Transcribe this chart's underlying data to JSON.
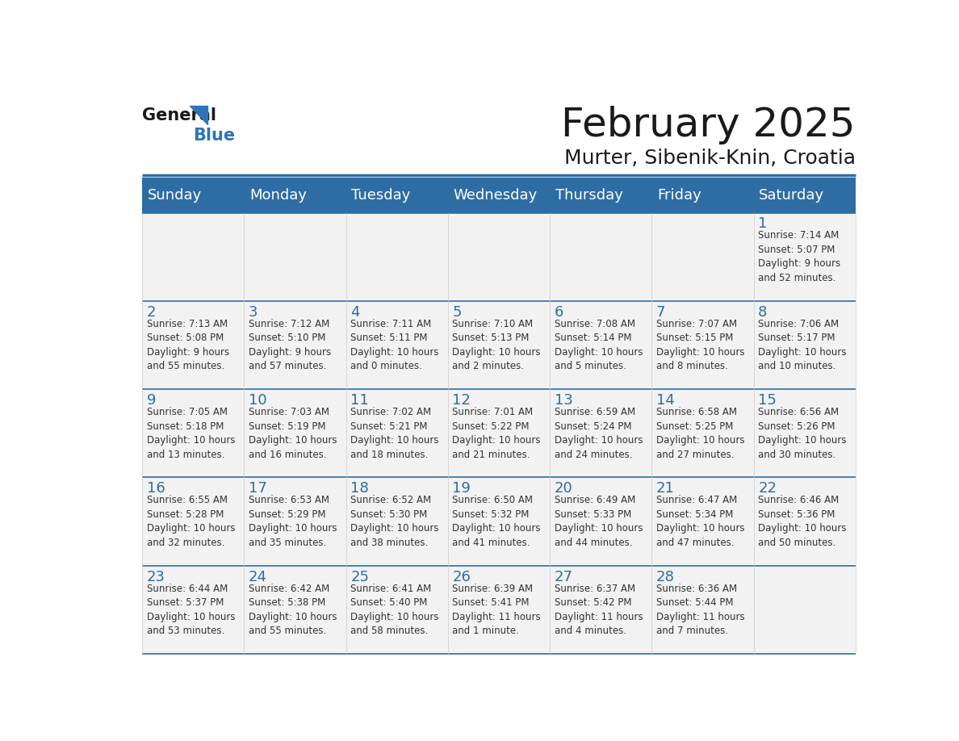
{
  "title": "February 2025",
  "subtitle": "Murter, Sibenik-Knin, Croatia",
  "header_bg": "#2E6DA4",
  "header_text": "#FFFFFF",
  "cell_bg": "#F2F2F2",
  "border_color": "#CCCCCC",
  "title_color": "#1a1a1a",
  "subtitle_color": "#1a1a1a",
  "day_number_color": "#2E6DA4",
  "info_color": "#333333",
  "days_of_week": [
    "Sunday",
    "Monday",
    "Tuesday",
    "Wednesday",
    "Thursday",
    "Friday",
    "Saturday"
  ],
  "weeks": [
    [
      {
        "day": null,
        "info": ""
      },
      {
        "day": null,
        "info": ""
      },
      {
        "day": null,
        "info": ""
      },
      {
        "day": null,
        "info": ""
      },
      {
        "day": null,
        "info": ""
      },
      {
        "day": null,
        "info": ""
      },
      {
        "day": 1,
        "info": "Sunrise: 7:14 AM\nSunset: 5:07 PM\nDaylight: 9 hours\nand 52 minutes."
      }
    ],
    [
      {
        "day": 2,
        "info": "Sunrise: 7:13 AM\nSunset: 5:08 PM\nDaylight: 9 hours\nand 55 minutes."
      },
      {
        "day": 3,
        "info": "Sunrise: 7:12 AM\nSunset: 5:10 PM\nDaylight: 9 hours\nand 57 minutes."
      },
      {
        "day": 4,
        "info": "Sunrise: 7:11 AM\nSunset: 5:11 PM\nDaylight: 10 hours\nand 0 minutes."
      },
      {
        "day": 5,
        "info": "Sunrise: 7:10 AM\nSunset: 5:13 PM\nDaylight: 10 hours\nand 2 minutes."
      },
      {
        "day": 6,
        "info": "Sunrise: 7:08 AM\nSunset: 5:14 PM\nDaylight: 10 hours\nand 5 minutes."
      },
      {
        "day": 7,
        "info": "Sunrise: 7:07 AM\nSunset: 5:15 PM\nDaylight: 10 hours\nand 8 minutes."
      },
      {
        "day": 8,
        "info": "Sunrise: 7:06 AM\nSunset: 5:17 PM\nDaylight: 10 hours\nand 10 minutes."
      }
    ],
    [
      {
        "day": 9,
        "info": "Sunrise: 7:05 AM\nSunset: 5:18 PM\nDaylight: 10 hours\nand 13 minutes."
      },
      {
        "day": 10,
        "info": "Sunrise: 7:03 AM\nSunset: 5:19 PM\nDaylight: 10 hours\nand 16 minutes."
      },
      {
        "day": 11,
        "info": "Sunrise: 7:02 AM\nSunset: 5:21 PM\nDaylight: 10 hours\nand 18 minutes."
      },
      {
        "day": 12,
        "info": "Sunrise: 7:01 AM\nSunset: 5:22 PM\nDaylight: 10 hours\nand 21 minutes."
      },
      {
        "day": 13,
        "info": "Sunrise: 6:59 AM\nSunset: 5:24 PM\nDaylight: 10 hours\nand 24 minutes."
      },
      {
        "day": 14,
        "info": "Sunrise: 6:58 AM\nSunset: 5:25 PM\nDaylight: 10 hours\nand 27 minutes."
      },
      {
        "day": 15,
        "info": "Sunrise: 6:56 AM\nSunset: 5:26 PM\nDaylight: 10 hours\nand 30 minutes."
      }
    ],
    [
      {
        "day": 16,
        "info": "Sunrise: 6:55 AM\nSunset: 5:28 PM\nDaylight: 10 hours\nand 32 minutes."
      },
      {
        "day": 17,
        "info": "Sunrise: 6:53 AM\nSunset: 5:29 PM\nDaylight: 10 hours\nand 35 minutes."
      },
      {
        "day": 18,
        "info": "Sunrise: 6:52 AM\nSunset: 5:30 PM\nDaylight: 10 hours\nand 38 minutes."
      },
      {
        "day": 19,
        "info": "Sunrise: 6:50 AM\nSunset: 5:32 PM\nDaylight: 10 hours\nand 41 minutes."
      },
      {
        "day": 20,
        "info": "Sunrise: 6:49 AM\nSunset: 5:33 PM\nDaylight: 10 hours\nand 44 minutes."
      },
      {
        "day": 21,
        "info": "Sunrise: 6:47 AM\nSunset: 5:34 PM\nDaylight: 10 hours\nand 47 minutes."
      },
      {
        "day": 22,
        "info": "Sunrise: 6:46 AM\nSunset: 5:36 PM\nDaylight: 10 hours\nand 50 minutes."
      }
    ],
    [
      {
        "day": 23,
        "info": "Sunrise: 6:44 AM\nSunset: 5:37 PM\nDaylight: 10 hours\nand 53 minutes."
      },
      {
        "day": 24,
        "info": "Sunrise: 6:42 AM\nSunset: 5:38 PM\nDaylight: 10 hours\nand 55 minutes."
      },
      {
        "day": 25,
        "info": "Sunrise: 6:41 AM\nSunset: 5:40 PM\nDaylight: 10 hours\nand 58 minutes."
      },
      {
        "day": 26,
        "info": "Sunrise: 6:39 AM\nSunset: 5:41 PM\nDaylight: 11 hours\nand 1 minute."
      },
      {
        "day": 27,
        "info": "Sunrise: 6:37 AM\nSunset: 5:42 PM\nDaylight: 11 hours\nand 4 minutes."
      },
      {
        "day": 28,
        "info": "Sunrise: 6:36 AM\nSunset: 5:44 PM\nDaylight: 11 hours\nand 7 minutes."
      },
      {
        "day": null,
        "info": ""
      }
    ]
  ],
  "logo_general_color": "#1a1a1a",
  "logo_blue_color": "#2E75B6",
  "logo_triangle_color": "#2E75B6"
}
